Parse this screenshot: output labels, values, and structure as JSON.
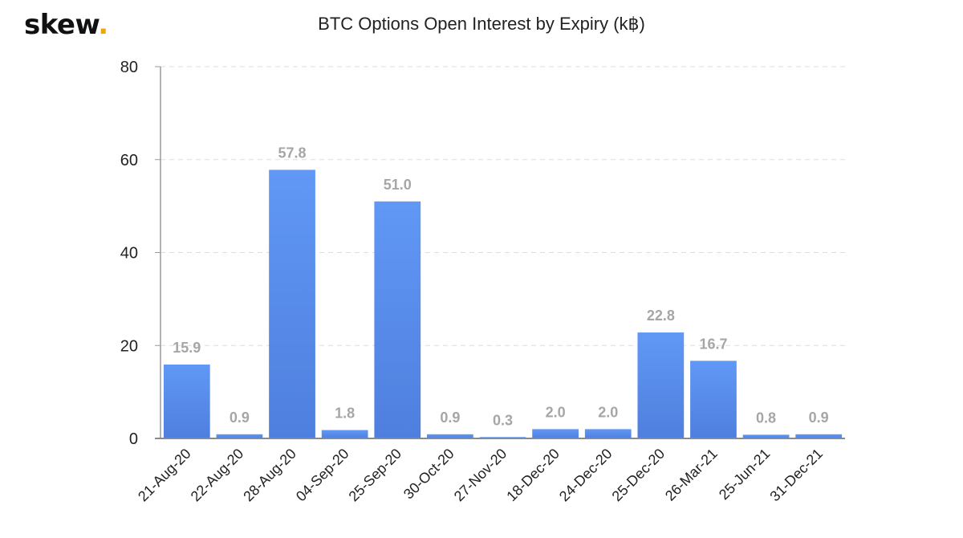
{
  "brand": {
    "name": "skew",
    "dot": ".",
    "dot_color": "#f4a400"
  },
  "chart_data": {
    "type": "bar",
    "title": "BTC Options Open Interest by Expiry (k฿)",
    "xlabel": "",
    "ylabel": "",
    "categories": [
      "21-Aug-20",
      "22-Aug-20",
      "28-Aug-20",
      "04-Sep-20",
      "25-Sep-20",
      "30-Oct-20",
      "27-Nov-20",
      "18-Dec-20",
      "24-Dec-20",
      "25-Dec-20",
      "26-Mar-21",
      "25-Jun-21",
      "31-Dec-21"
    ],
    "values": [
      15.9,
      0.9,
      57.8,
      1.8,
      51.0,
      0.9,
      0.3,
      2.0,
      2.0,
      22.8,
      16.7,
      0.8,
      0.9
    ],
    "data_labels": [
      "15.9",
      "0.9",
      "57.8",
      "1.8",
      "51.0",
      "0.9",
      "0.3",
      "2.0",
      "2.0",
      "22.8",
      "16.7",
      "0.8",
      "0.9"
    ],
    "ylim": [
      0,
      80
    ],
    "yticks": [
      0,
      20,
      40,
      60,
      80
    ],
    "grid": true,
    "legend": "none",
    "bar_color_top": "#6198f5",
    "bar_color_bottom": "#4f7fde",
    "label_color": "#a6a6a6"
  }
}
